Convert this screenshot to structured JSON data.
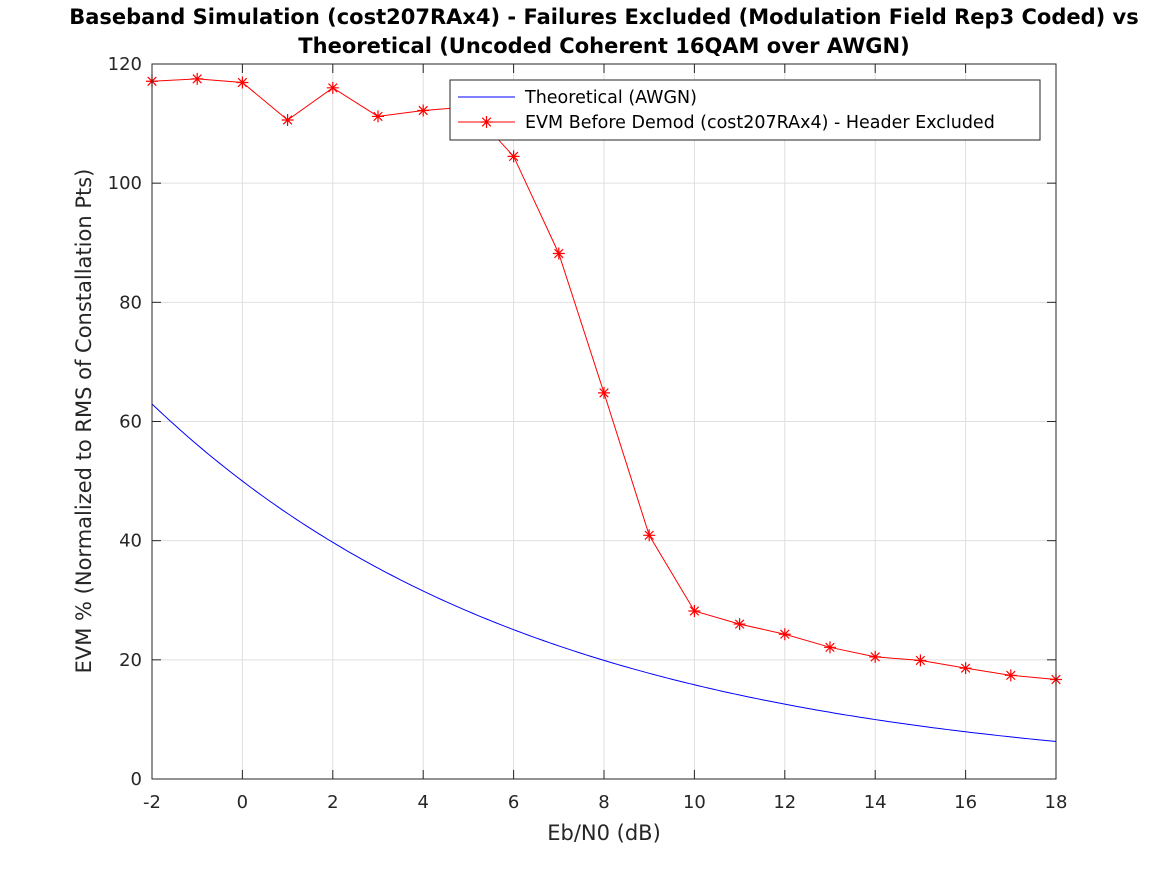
{
  "chart_data": {
    "type": "line",
    "title_lines": [
      "Baseband Simulation (cost207RAx4) - Failures Excluded (Modulation Field Rep3 Coded) vs",
      "Theoretical (Uncoded Coherent 16QAM over AWGN)"
    ],
    "xlabel": "Eb/N0 (dB)",
    "ylabel": "EVM % (Normalized to RMS of Constallation Pts)",
    "xlim": [
      -2,
      18
    ],
    "ylim": [
      0,
      120
    ],
    "xticks": [
      -2,
      0,
      2,
      4,
      6,
      8,
      10,
      12,
      14,
      16,
      18
    ],
    "yticks": [
      0,
      20,
      40,
      60,
      80,
      100,
      120
    ],
    "grid": true,
    "legend_position": "top-right",
    "series": [
      {
        "name": "Theoretical (AWGN)",
        "color": "#0000ff",
        "marker": "none",
        "x": [
          -2,
          -1,
          0,
          1,
          2,
          3,
          4,
          5,
          6,
          7,
          8,
          9,
          10,
          11,
          12,
          13,
          14,
          15,
          16,
          17,
          18
        ],
        "y": [
          62.9,
          56.1,
          50.0,
          44.6,
          39.7,
          35.4,
          31.5,
          28.1,
          25.1,
          22.3,
          19.9,
          17.7,
          15.8,
          14.1,
          12.6,
          11.2,
          10.0,
          8.9,
          7.9,
          7.1,
          6.3
        ]
      },
      {
        "name": "EVM Before Demod (cost207RAx4) - Header Excluded",
        "color": "#ff0000",
        "marker": "asterisk",
        "x": [
          -2,
          -1,
          0,
          1,
          2,
          3,
          4,
          5,
          6,
          7,
          8,
          9,
          10,
          11,
          12,
          13,
          14,
          15,
          16,
          17,
          18
        ],
        "y": [
          117.1,
          117.5,
          116.9,
          110.6,
          116.0,
          111.2,
          112.2,
          112.8,
          104.5,
          88.2,
          64.8,
          40.9,
          28.2,
          26.0,
          24.3,
          22.1,
          20.5,
          19.9,
          18.6,
          17.4,
          16.7
        ]
      }
    ]
  }
}
